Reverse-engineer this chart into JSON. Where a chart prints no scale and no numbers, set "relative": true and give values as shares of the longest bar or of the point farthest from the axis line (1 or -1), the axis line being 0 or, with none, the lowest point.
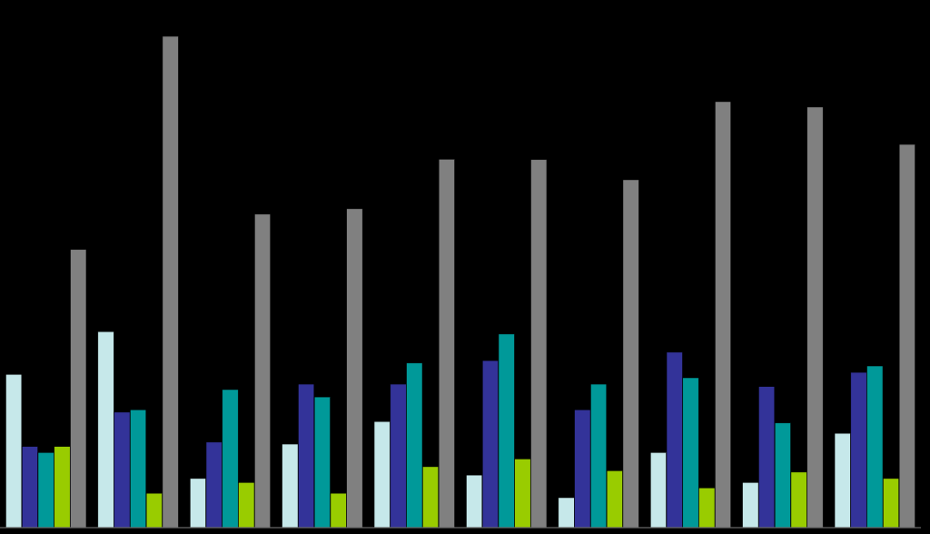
{
  "chart_data": {
    "type": "bar",
    "relative": true,
    "categories": [
      null,
      null,
      null,
      null,
      null,
      null,
      null,
      null,
      null,
      null
    ],
    "series": [
      {
        "color": "#c6e8ea",
        "values": [
          0.312,
          0.399,
          0.1,
          0.17,
          0.216,
          0.107,
          0.061,
          0.153,
          0.092,
          0.192
        ]
      },
      {
        "color": "#333399",
        "values": [
          0.165,
          0.235,
          0.174,
          0.292,
          0.292,
          0.34,
          0.24,
          0.357,
          0.287,
          0.316
        ]
      },
      {
        "color": "#009999",
        "values": [
          0.153,
          0.24,
          0.281,
          0.266,
          0.335,
          0.394,
          0.292,
          0.305,
          0.213,
          0.329
        ]
      },
      {
        "color": "#99cc00",
        "values": [
          0.165,
          0.07,
          0.092,
          0.07,
          0.124,
          0.14,
          0.116,
          0.081,
          0.113,
          0.1
        ]
      },
      {
        "color": "#808080",
        "values": [
          0.566,
          1.0,
          0.638,
          0.649,
          0.75,
          0.749,
          0.708,
          0.867,
          0.856,
          0.78
        ]
      }
    ]
  }
}
